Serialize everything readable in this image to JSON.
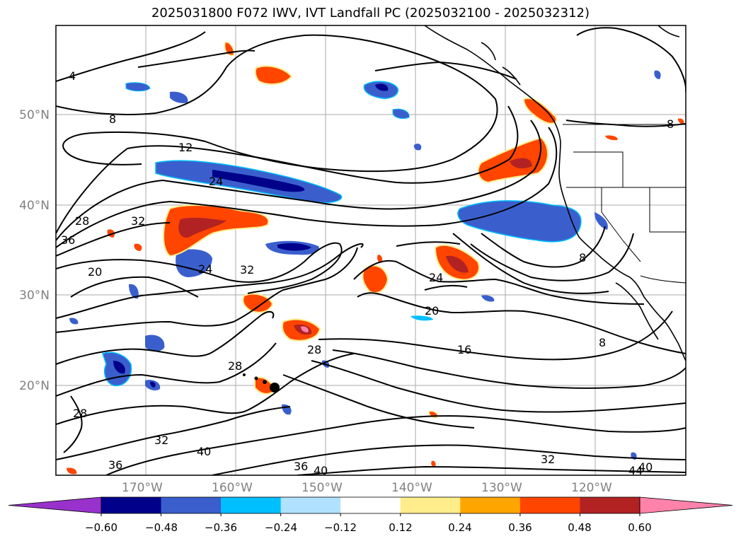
{
  "title": "2025031800 F072 IWV, IVT Landfall PC (2025032100 - 2025032312)",
  "latitude_labels": [
    "50°N",
    "40°N",
    "30°N",
    "20°N"
  ],
  "longitude_labels": [
    "170°W",
    "160°W",
    "150°W",
    "140°W",
    "130°W",
    "120°W"
  ],
  "contour_labels": [
    "4",
    "8",
    "12",
    "24",
    "28",
    "36",
    "32",
    "20",
    "24",
    "32",
    "28",
    "28",
    "32",
    "40",
    "36",
    "36",
    "40",
    "24",
    "20",
    "16",
    "8",
    "8",
    "32",
    "40",
    "44",
    "8"
  ],
  "colorbar": {
    "ticks": [
      "−0.60",
      "−0.48",
      "−0.36",
      "−0.24",
      "−0.12",
      "0.12",
      "0.24",
      "0.36",
      "0.48",
      "0.60"
    ],
    "colors": [
      "#9932cc",
      "#00008b",
      "#3a5fcd",
      "#00bfff",
      "#b0e2ff",
      "#ffffff",
      "#ffec8b",
      "#ffa500",
      "#ff4500",
      "#b22222",
      "#ff82ab"
    ]
  }
}
